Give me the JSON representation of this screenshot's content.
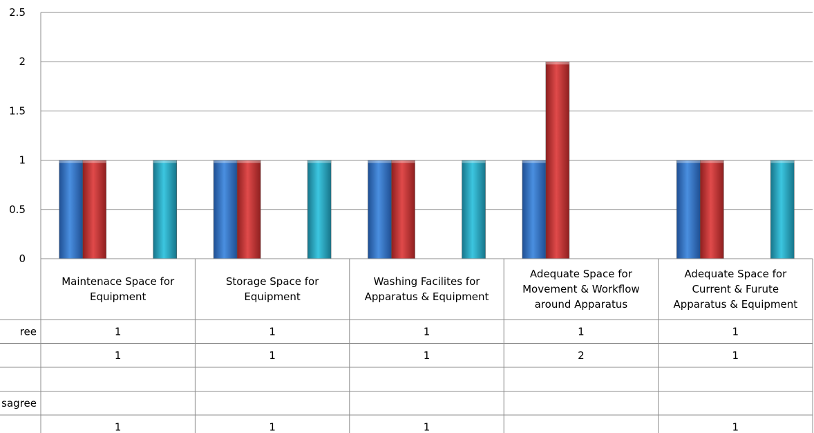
{
  "chart_data": {
    "type": "bar",
    "categories": [
      [
        "Maintenace Space for",
        "Equipment"
      ],
      [
        "Storage Space for",
        "Equipment"
      ],
      [
        "Washing Facilites for",
        "Apparatus & Equipment"
      ],
      [
        "Adequate Space for",
        "Movement & Workflow",
        "around Apparatus"
      ],
      [
        "Adequate Space for",
        "Current & Furute",
        "Apparatus & Equipment"
      ]
    ],
    "series": [
      {
        "row_label": "ree",
        "color": "#3a78c8",
        "values": [
          1,
          1,
          1,
          1,
          1
        ]
      },
      {
        "row_label": "",
        "color": "#cc3a3a",
        "values": [
          1,
          1,
          1,
          2,
          1
        ]
      },
      {
        "row_label": "",
        "color": "#9fbf4a",
        "values": [
          null,
          null,
          null,
          null,
          null
        ]
      },
      {
        "row_label": "sagree",
        "color": "#7a5aa8",
        "values": [
          null,
          null,
          null,
          null,
          null
        ]
      },
      {
        "row_label": "",
        "color": "#2fb0c8",
        "values": [
          1,
          1,
          1,
          null,
          1
        ]
      }
    ],
    "ylim": [
      0,
      2.5
    ],
    "yticks": [
      "0",
      "0.5",
      "1",
      "1.5",
      "2",
      "2.5"
    ],
    "grid": true,
    "legend": "data-table"
  }
}
